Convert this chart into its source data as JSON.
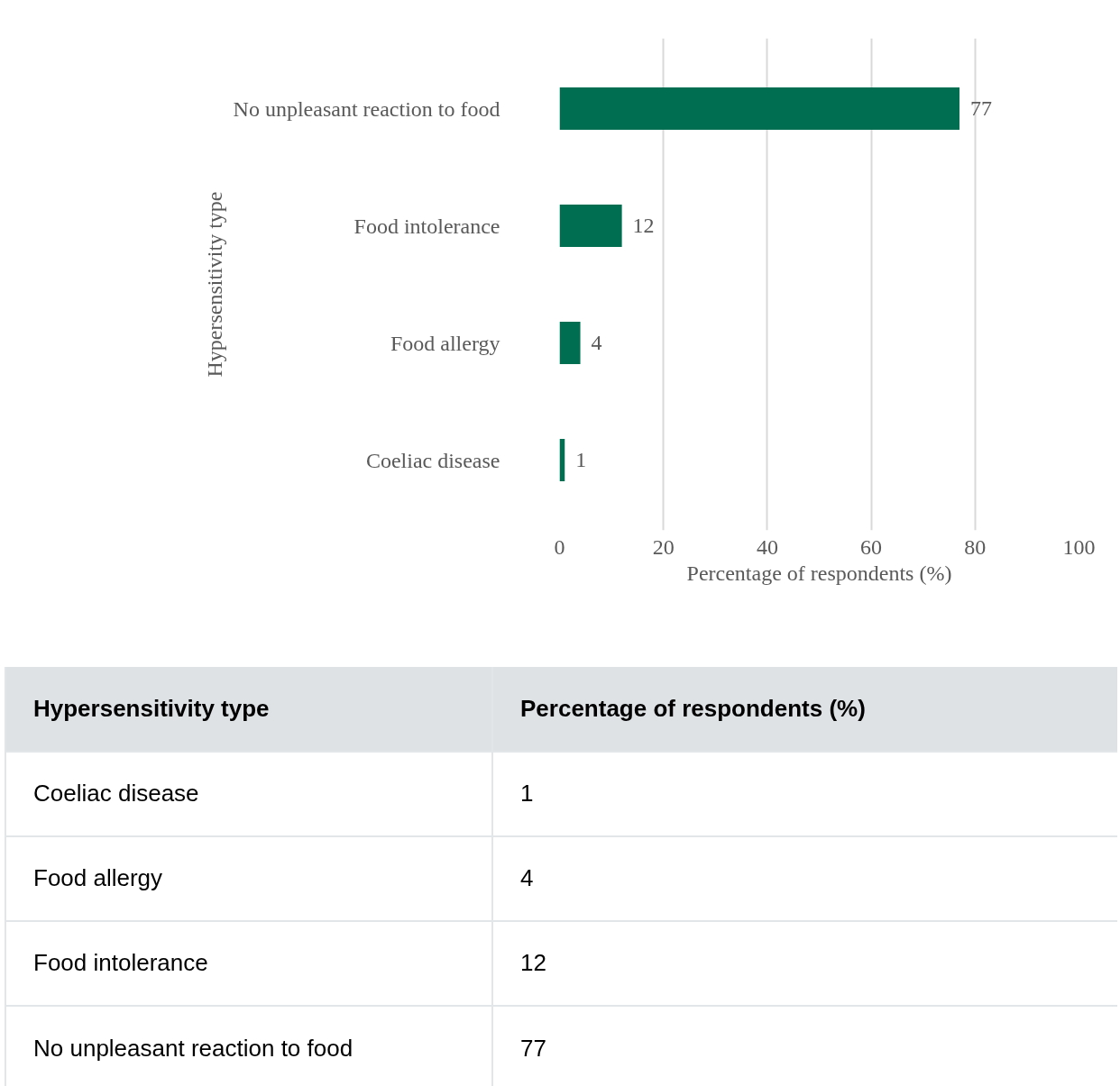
{
  "chart_data": {
    "type": "bar",
    "orientation": "horizontal",
    "categories": [
      "No unpleasant reaction to food",
      "Food intolerance",
      "Food allergy",
      "Coeliac disease"
    ],
    "values": [
      77,
      12,
      4,
      1
    ],
    "color": "#006f51",
    "xlabel": "Percentage of respondents (%)",
    "ylabel": "Hypersensitivity type",
    "xlim": [
      0,
      100
    ],
    "xticks": [
      0,
      20,
      40,
      60,
      80,
      100
    ],
    "grid": "x",
    "value_labels": [
      "77",
      "12",
      "4",
      "1"
    ]
  }
}
